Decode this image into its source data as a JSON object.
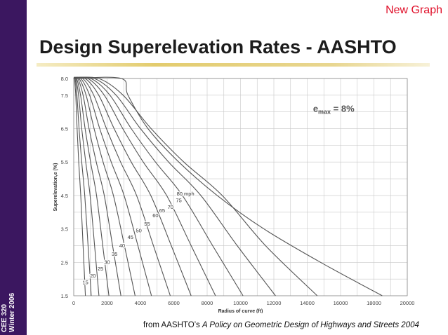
{
  "slide": {
    "header_tag": "New Graph",
    "title": "Design Superelevation Rates - AASHTO",
    "course_line1": "CEE 320",
    "course_line2": "Winter 2006",
    "source_prefix": "from AASHTO’s ",
    "source_title": "A Policy on Geometric Design of Highways and Streets 2004"
  },
  "colors": {
    "sidebar": "#3b1760",
    "accent_red": "#e0102a",
    "curve": "#555555",
    "grid": "#c8c8c8"
  },
  "chart_data": {
    "type": "line",
    "title": "",
    "xlabel": "Radius of curve (ft)",
    "ylabel": "Superelevation,e (%)",
    "xlim": [
      0,
      20000
    ],
    "ylim": [
      1.5,
      8.0
    ],
    "xticks": [
      0,
      2000,
      4000,
      6000,
      8000,
      10000,
      12000,
      14000,
      16000,
      18000,
      20000
    ],
    "yticks": [
      1.5,
      2.5,
      3.5,
      4.5,
      5.5,
      6.5,
      7.5,
      8.0
    ],
    "annotation": {
      "prefix": "e",
      "subscript": "max",
      "suffix": " = 8%"
    },
    "speed_unit": "mph",
    "series": [
      {
        "name": "15",
        "x": [
          0,
          45,
          120,
          200,
          300,
          420,
          560,
          700
        ],
        "y": [
          8.0,
          8.0,
          7.5,
          6.5,
          5.5,
          4.5,
          3.0,
          1.5
        ]
      },
      {
        "name": "20",
        "x": [
          0,
          80,
          190,
          320,
          480,
          660,
          860,
          1050
        ],
        "y": [
          8.0,
          8.0,
          7.5,
          6.5,
          5.5,
          4.5,
          3.0,
          1.5
        ]
      },
      {
        "name": "25",
        "x": [
          0,
          120,
          290,
          480,
          720,
          980,
          1250,
          1510
        ],
        "y": [
          8.0,
          8.0,
          7.5,
          6.5,
          5.5,
          4.5,
          3.0,
          1.5
        ]
      },
      {
        "name": "30",
        "x": [
          0,
          170,
          410,
          680,
          1010,
          1370,
          1740,
          2110
        ],
        "y": [
          8.0,
          8.0,
          7.5,
          6.5,
          5.5,
          4.5,
          3.0,
          1.5
        ]
      },
      {
        "name": "35",
        "x": [
          0,
          240,
          560,
          920,
          1350,
          1830,
          2330,
          2830
        ],
        "y": [
          8.0,
          8.0,
          7.5,
          6.5,
          5.5,
          4.5,
          3.0,
          1.5
        ]
      },
      {
        "name": "40",
        "x": [
          0,
          320,
          740,
          1220,
          1760,
          2380,
          3040,
          3680
        ],
        "y": [
          8.0,
          8.0,
          7.5,
          6.5,
          5.5,
          4.5,
          3.0,
          1.5
        ]
      },
      {
        "name": "45",
        "x": [
          0,
          420,
          950,
          1560,
          2250,
          3020,
          3850,
          4660
        ],
        "y": [
          8.0,
          8.0,
          7.5,
          6.5,
          5.5,
          4.5,
          3.0,
          1.5
        ]
      },
      {
        "name": "50",
        "x": [
          0,
          540,
          1200,
          1960,
          2810,
          3770,
          4780,
          5790
        ],
        "y": [
          8.0,
          8.0,
          7.5,
          6.5,
          5.5,
          4.5,
          3.0,
          1.5
        ]
      },
      {
        "name": "55",
        "x": [
          0,
          690,
          1500,
          2420,
          3450,
          4620,
          5850,
          7040
        ],
        "y": [
          8.0,
          8.0,
          7.5,
          6.5,
          5.5,
          4.5,
          3.0,
          1.5
        ]
      },
      {
        "name": "60",
        "x": [
          0,
          850,
          1830,
          2940,
          4170,
          5570,
          7040,
          8500
        ],
        "y": [
          8.0,
          8.0,
          7.5,
          6.5,
          5.5,
          4.5,
          3.0,
          1.5
        ]
      },
      {
        "name": "65",
        "x": [
          0,
          1030,
          2170,
          3450,
          4900,
          6520,
          8330,
          10150
        ],
        "y": [
          8.0,
          8.0,
          7.5,
          6.5,
          5.5,
          4.5,
          3.0,
          1.5
        ]
      },
      {
        "name": "70",
        "x": [
          0,
          1240,
          2540,
          4000,
          5690,
          7620,
          9800,
          12100
        ],
        "y": [
          8.0,
          8.0,
          7.5,
          6.5,
          5.5,
          4.5,
          3.0,
          1.5
        ]
      },
      {
        "name": "75",
        "x": [
          0,
          1500,
          2960,
          4640,
          6600,
          8900,
          11500,
          14600
        ],
        "y": [
          8.0,
          8.0,
          7.5,
          6.5,
          5.5,
          4.5,
          3.0,
          1.5
        ]
      },
      {
        "name": "80",
        "x": [
          0,
          2850,
          3250,
          4450,
          6300,
          8600,
          11400,
          14800,
          18500
        ],
        "y": [
          8.0,
          8.0,
          7.5,
          6.5,
          5.5,
          4.5,
          3.5,
          2.5,
          1.5
        ]
      }
    ],
    "labels": [
      {
        "text": "15",
        "x": 700,
        "y": 1.85
      },
      {
        "text": "20",
        "x": 1150,
        "y": 2.05
      },
      {
        "text": "25",
        "x": 1600,
        "y": 2.25
      },
      {
        "text": "30",
        "x": 2000,
        "y": 2.45
      },
      {
        "text": "35",
        "x": 2450,
        "y": 2.7
      },
      {
        "text": "40",
        "x": 2900,
        "y": 2.95
      },
      {
        "text": "45",
        "x": 3400,
        "y": 3.2
      },
      {
        "text": "50",
        "x": 3900,
        "y": 3.4
      },
      {
        "text": "55",
        "x": 4400,
        "y": 3.6
      },
      {
        "text": "60",
        "x": 4900,
        "y": 3.85
      },
      {
        "text": "65",
        "x": 5300,
        "y": 4.0
      },
      {
        "text": "70",
        "x": 5800,
        "y": 4.1
      },
      {
        "text": "75",
        "x": 6300,
        "y": 4.3
      },
      {
        "text": "80 mph",
        "x": 6700,
        "y": 4.5
      }
    ]
  }
}
